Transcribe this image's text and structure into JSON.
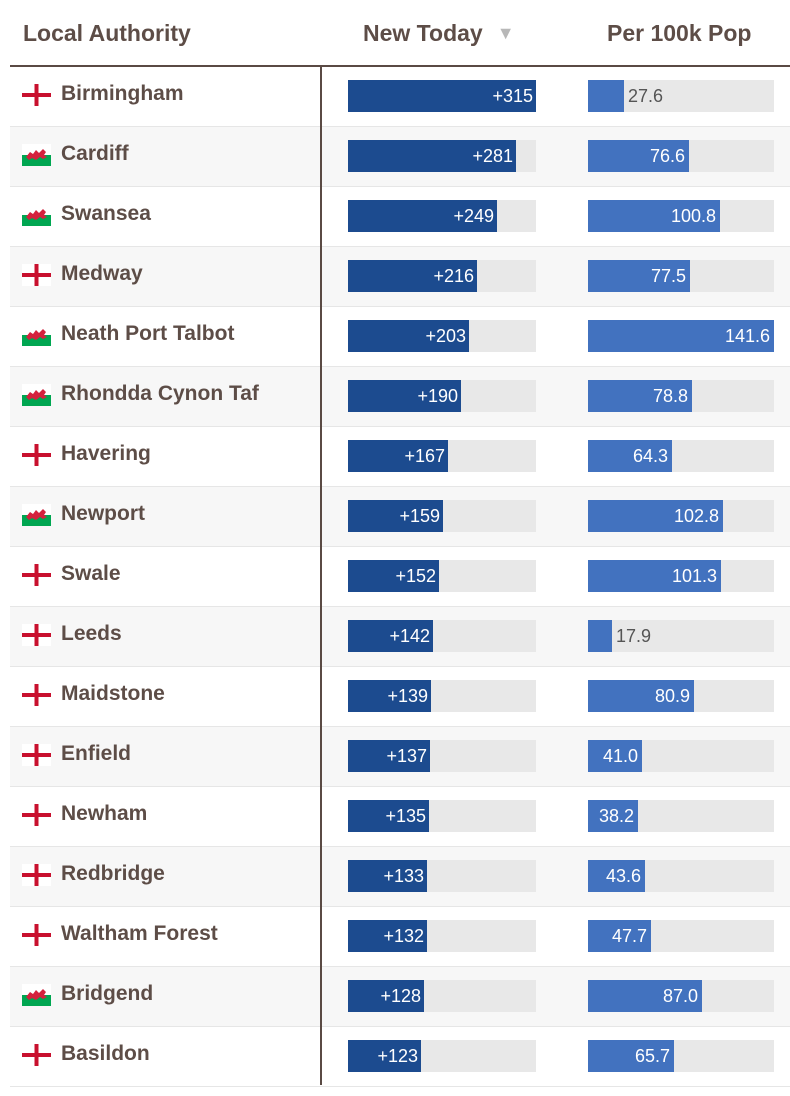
{
  "header": {
    "local_authority": "Local Authority",
    "new_today": "New Today",
    "sort_icon": "▼",
    "per_100k": "Per 100k Pop"
  },
  "colors": {
    "new_bar": "#1c4b8f",
    "per_bar": "#4272bf",
    "track": "#e8e8e8",
    "england_cross": "#c8102e",
    "wales_green": "#00a651",
    "wales_dragon": "#d4213d"
  },
  "scale": {
    "new_today_max": 315,
    "per_100k_max": 141.6
  },
  "rows": [
    {
      "name": "Birmingham",
      "flag": "england-flag-icon",
      "new_today": 315,
      "new_today_label": "+315",
      "per_100k": 27.6,
      "per_100k_label": "27.6"
    },
    {
      "name": "Cardiff",
      "flag": "wales-flag-icon",
      "new_today": 281,
      "new_today_label": "+281",
      "per_100k": 76.6,
      "per_100k_label": "76.6"
    },
    {
      "name": "Swansea",
      "flag": "wales-flag-icon",
      "new_today": 249,
      "new_today_label": "+249",
      "per_100k": 100.8,
      "per_100k_label": "100.8"
    },
    {
      "name": "Medway",
      "flag": "england-flag-icon",
      "new_today": 216,
      "new_today_label": "+216",
      "per_100k": 77.5,
      "per_100k_label": "77.5"
    },
    {
      "name": "Neath Port Talbot",
      "flag": "wales-flag-icon",
      "new_today": 203,
      "new_today_label": "+203",
      "per_100k": 141.6,
      "per_100k_label": "141.6"
    },
    {
      "name": "Rhondda Cynon Taf",
      "flag": "wales-flag-icon",
      "new_today": 190,
      "new_today_label": "+190",
      "per_100k": 78.8,
      "per_100k_label": "78.8"
    },
    {
      "name": "Havering",
      "flag": "england-flag-icon",
      "new_today": 167,
      "new_today_label": "+167",
      "per_100k": 64.3,
      "per_100k_label": "64.3"
    },
    {
      "name": "Newport",
      "flag": "wales-flag-icon",
      "new_today": 159,
      "new_today_label": "+159",
      "per_100k": 102.8,
      "per_100k_label": "102.8"
    },
    {
      "name": "Swale",
      "flag": "england-flag-icon",
      "new_today": 152,
      "new_today_label": "+152",
      "per_100k": 101.3,
      "per_100k_label": "101.3"
    },
    {
      "name": "Leeds",
      "flag": "england-flag-icon",
      "new_today": 142,
      "new_today_label": "+142",
      "per_100k": 17.9,
      "per_100k_label": "17.9"
    },
    {
      "name": "Maidstone",
      "flag": "england-flag-icon",
      "new_today": 139,
      "new_today_label": "+139",
      "per_100k": 80.9,
      "per_100k_label": "80.9"
    },
    {
      "name": "Enfield",
      "flag": "england-flag-icon",
      "new_today": 137,
      "new_today_label": "+137",
      "per_100k": 41.0,
      "per_100k_label": "41.0"
    },
    {
      "name": "Newham",
      "flag": "england-flag-icon",
      "new_today": 135,
      "new_today_label": "+135",
      "per_100k": 38.2,
      "per_100k_label": "38.2"
    },
    {
      "name": "Redbridge",
      "flag": "england-flag-icon",
      "new_today": 133,
      "new_today_label": "+133",
      "per_100k": 43.6,
      "per_100k_label": "43.6"
    },
    {
      "name": "Waltham Forest",
      "flag": "england-flag-icon",
      "new_today": 132,
      "new_today_label": "+132",
      "per_100k": 47.7,
      "per_100k_label": "47.7"
    },
    {
      "name": "Bridgend",
      "flag": "wales-flag-icon",
      "new_today": 128,
      "new_today_label": "+128",
      "per_100k": 87.0,
      "per_100k_label": "87.0"
    },
    {
      "name": "Basildon",
      "flag": "england-flag-icon",
      "new_today": 123,
      "new_today_label": "+123",
      "per_100k": 65.7,
      "per_100k_label": "65.7"
    }
  ]
}
